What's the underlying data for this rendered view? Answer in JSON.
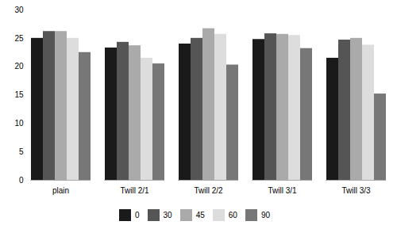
{
  "chart_data": {
    "type": "bar",
    "categories": [
      "plain",
      "Twill 2/1",
      "Twill 2/2",
      "Twill 3/1",
      "Twill 3/3"
    ],
    "series": [
      {
        "name": "0",
        "color": "#1a1a1a",
        "values": [
          25.0,
          23.3,
          24.0,
          24.8,
          21.5
        ]
      },
      {
        "name": "30",
        "color": "#555555",
        "values": [
          26.2,
          24.3,
          25.0,
          25.8,
          24.7
        ]
      },
      {
        "name": "45",
        "color": "#aaaaaa",
        "values": [
          26.2,
          23.7,
          26.7,
          25.7,
          25.0
        ]
      },
      {
        "name": "60",
        "color": "#dddddd",
        "values": [
          25.0,
          21.5,
          25.7,
          25.5,
          23.8
        ]
      },
      {
        "name": "90",
        "color": "#777777",
        "values": [
          22.5,
          20.5,
          20.3,
          23.2,
          15.2
        ]
      }
    ],
    "ylim": [
      0,
      30
    ],
    "yticks": [
      0,
      5,
      10,
      15,
      20,
      25,
      30
    ],
    "grid": false,
    "legend": "bottom"
  }
}
